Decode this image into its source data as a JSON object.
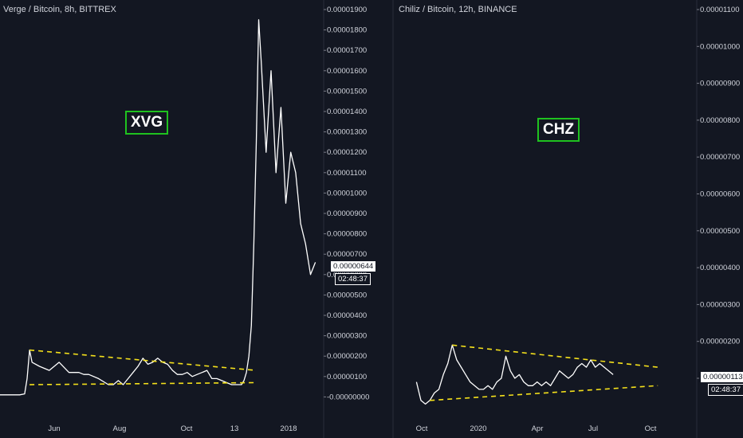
{
  "chart_data": [
    {
      "type": "line",
      "title": "Verge / Bitcoin, 8h, BITTREX",
      "annotation": "XVG",
      "y_ticks": [
        "0.00001900",
        "0.00001800",
        "0.00001700",
        "0.00001600",
        "0.00001500",
        "0.00001400",
        "0.00001300",
        "0.00001200",
        "0.00001100",
        "0.00001000",
        "0.00000900",
        "0.00000800",
        "0.00000700",
        "0.00000600",
        "0.00000500",
        "0.00000400",
        "0.00000300",
        "0.00000200",
        "0.00000100",
        "-0.00000000"
      ],
      "x_ticks": [
        "Jun",
        "Aug",
        "Oct",
        "13",
        "2018"
      ],
      "ylim": [
        0,
        1.9e-05
      ],
      "current_price": "0.00000644",
      "countdown": "02:48:37",
      "series": [
        {
          "x": [
            0,
            4,
            8,
            10,
            11,
            12,
            13,
            16,
            20,
            24,
            28,
            32,
            34,
            36,
            40,
            44,
            46,
            48,
            50,
            52,
            54,
            56,
            58,
            60,
            62,
            64,
            66,
            68,
            70,
            72,
            74,
            76,
            78,
            80,
            82,
            84,
            86,
            88,
            90,
            92,
            94,
            96,
            98,
            99,
            100,
            101,
            102,
            103,
            104,
            105,
            106,
            108,
            110,
            112,
            114,
            116,
            118,
            120,
            122,
            124,
            126,
            128
          ],
          "y": [
            1e-07,
            1e-07,
            1e-07,
            1.5e-07,
            9e-07,
            2.3e-06,
            1.7e-06,
            1.5e-06,
            1.3e-06,
            1.7e-06,
            1.2e-06,
            1.2e-06,
            1.1e-06,
            1.1e-06,
            9e-07,
            6e-07,
            6e-07,
            8e-07,
            6e-07,
            9e-07,
            1.2e-06,
            1.5e-06,
            1.9e-06,
            1.6e-06,
            1.7e-06,
            1.9e-06,
            1.7e-06,
            1.6e-06,
            1.3e-06,
            1.1e-06,
            1.1e-06,
            1.2e-06,
            1e-06,
            1.1e-06,
            1.2e-06,
            1.3e-06,
            9e-07,
            9e-07,
            8e-07,
            7e-07,
            6e-07,
            6e-07,
            6e-07,
            8e-07,
            1.2e-06,
            2e-06,
            3.5e-06,
            7.5e-06,
            1.25e-05,
            1.85e-05,
            1.65e-05,
            1.2e-05,
            1.6e-05,
            1.1e-05,
            1.42e-05,
            9.5e-06,
            1.2e-05,
            1.1e-05,
            8.5e-06,
            7.5e-06,
            6e-06,
            6.6e-06
          ]
        }
      ],
      "trendlines": [
        {
          "from": [
            12,
            2.3e-06
          ],
          "to": [
            104,
            1.3e-06
          ]
        },
        {
          "from": [
            12,
            6e-07
          ],
          "to": [
            104,
            7e-07
          ]
        }
      ]
    },
    {
      "type": "line",
      "title": "Chiliz / Bitcoin, 12h, BINANCE",
      "annotation": "CHZ",
      "y_ticks": [
        "0.00001100",
        "0.00001000",
        "0.00000900",
        "0.00000800",
        "0.00000700",
        "0.00000600",
        "0.00000500",
        "0.00000400",
        "0.00000300",
        "0.00000200",
        "0.00000100"
      ],
      "x_ticks": [
        "Oct",
        "2020",
        "Apr",
        "Jul",
        "Oct"
      ],
      "ylim": [
        0,
        1.1e-05
      ],
      "current_price": "0.00000113",
      "countdown": "02:48:37",
      "series": [
        {
          "x": [
            0,
            2,
            4,
            6,
            8,
            10,
            12,
            14,
            16,
            18,
            20,
            22,
            24,
            26,
            28,
            30,
            32,
            34,
            36,
            38,
            40,
            42,
            44,
            46,
            48,
            50,
            52,
            54,
            56,
            58,
            60,
            62,
            64,
            66,
            68,
            70,
            72,
            74,
            76,
            78,
            80,
            82,
            84,
            86,
            88
          ],
          "y": [
            9e-07,
            4e-07,
            3e-07,
            4e-07,
            6e-07,
            7e-07,
            1.1e-06,
            1.4e-06,
            1.9e-06,
            1.5e-06,
            1.3e-06,
            1.1e-06,
            9e-07,
            8e-07,
            7e-07,
            7e-07,
            8e-07,
            7e-07,
            9e-07,
            1e-06,
            1.6e-06,
            1.2e-06,
            1e-06,
            1.1e-06,
            9e-07,
            8e-07,
            8e-07,
            9e-07,
            8e-07,
            9e-07,
            8e-07,
            1e-06,
            1.2e-06,
            1.1e-06,
            1e-06,
            1.1e-06,
            1.3e-06,
            1.4e-06,
            1.3e-06,
            1.5e-06,
            1.3e-06,
            1.4e-06,
            1.3e-06,
            1.2e-06,
            1.1e-06
          ]
        },
        {
          "x": [],
          "y": []
        }
      ],
      "trendlines": [
        {
          "from": [
            16,
            1.9e-06
          ],
          "to": [
            108,
            1.3e-06
          ]
        },
        {
          "from": [
            6,
            4e-07
          ],
          "to": [
            108,
            8e-07
          ]
        }
      ]
    }
  ]
}
